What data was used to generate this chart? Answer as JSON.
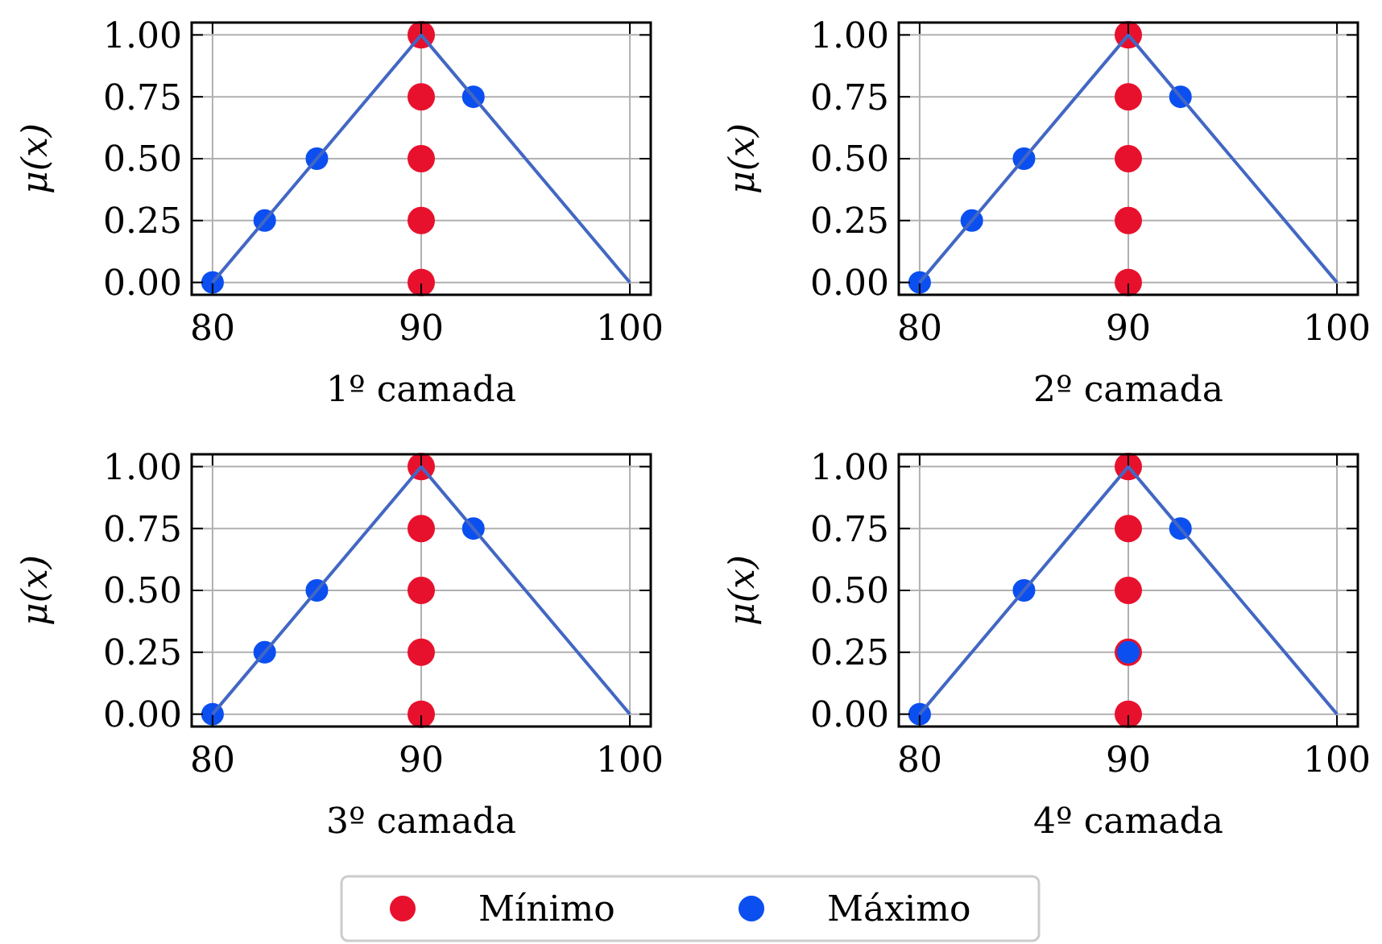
{
  "chart_data": [
    {
      "type": "scatter",
      "xlabel": "1º camada",
      "ylabel": "μ(x)",
      "xlim": [
        79,
        101
      ],
      "ylim": [
        -0.05,
        1.05
      ],
      "xticks": [
        80,
        90,
        100
      ],
      "yticks": [
        {
          "value": 0,
          "label": "0.00"
        },
        {
          "value": 0.25,
          "label": "0.25"
        },
        {
          "value": 0.5,
          "label": "0.50"
        },
        {
          "value": 0.75,
          "label": "0.75"
        },
        {
          "value": 1,
          "label": "1.00"
        }
      ],
      "grid": true,
      "legend": "bottom",
      "series": [
        {
          "name": "Mínimo",
          "color": "#e8112d",
          "marker": "circle",
          "x": [
            90,
            90,
            90,
            90,
            90
          ],
          "values": [
            0,
            0.25,
            0.5,
            0.75,
            1
          ]
        },
        {
          "name": "Máximo",
          "color": "#0b4ff0",
          "marker": "circle",
          "x": [
            80,
            82.5,
            85,
            92.5
          ],
          "values": [
            0,
            0.25,
            0.5,
            0.75
          ]
        },
        {
          "type": "line",
          "color": "#4267c4",
          "x": [
            80,
            90,
            100
          ],
          "values": [
            0,
            1,
            0
          ]
        }
      ]
    },
    {
      "type": "scatter",
      "xlabel": "2º camada",
      "ylabel": "μ(x)",
      "xlim": [
        79,
        101
      ],
      "ylim": [
        -0.05,
        1.05
      ],
      "xticks": [
        80,
        90,
        100
      ],
      "yticks": [
        {
          "value": 0,
          "label": "0.00"
        },
        {
          "value": 0.25,
          "label": "0.25"
        },
        {
          "value": 0.5,
          "label": "0.50"
        },
        {
          "value": 0.75,
          "label": "0.75"
        },
        {
          "value": 1,
          "label": "1.00"
        }
      ],
      "grid": true,
      "series": [
        {
          "color": "#e8112d",
          "marker": "circle",
          "x": [
            90,
            90,
            90,
            90,
            90
          ],
          "values": [
            0,
            0.25,
            0.5,
            0.75,
            1
          ]
        },
        {
          "color": "#0b4ff0",
          "marker": "circle",
          "x": [
            80,
            82.5,
            85,
            92.5
          ],
          "values": [
            0,
            0.25,
            0.5,
            0.75
          ]
        },
        {
          "type": "line",
          "color": "#4267c4",
          "x": [
            80,
            90,
            100
          ],
          "values": [
            0,
            1,
            0
          ]
        }
      ]
    },
    {
      "type": "scatter",
      "xlabel": "3º camada",
      "ylabel": "μ(x)",
      "xlim": [
        79,
        101
      ],
      "ylim": [
        -0.05,
        1.05
      ],
      "xticks": [
        80,
        90,
        100
      ],
      "yticks": [
        {
          "value": 0,
          "label": "0.00"
        },
        {
          "value": 0.25,
          "label": "0.25"
        },
        {
          "value": 0.5,
          "label": "0.50"
        },
        {
          "value": 0.75,
          "label": "0.75"
        },
        {
          "value": 1,
          "label": "1.00"
        }
      ],
      "grid": true,
      "series": [
        {
          "color": "#e8112d",
          "marker": "circle",
          "x": [
            90,
            90,
            90,
            90,
            90
          ],
          "values": [
            0,
            0.25,
            0.5,
            0.75,
            1
          ]
        },
        {
          "color": "#0b4ff0",
          "marker": "circle",
          "x": [
            80,
            82.5,
            85,
            92.5
          ],
          "values": [
            0,
            0.25,
            0.5,
            0.75
          ]
        },
        {
          "type": "line",
          "color": "#4267c4",
          "x": [
            80,
            90,
            100
          ],
          "values": [
            0,
            1,
            0
          ]
        }
      ]
    },
    {
      "type": "scatter",
      "xlabel": "4º camada",
      "ylabel": "μ(x)",
      "xlim": [
        79,
        101
      ],
      "ylim": [
        -0.05,
        1.05
      ],
      "xticks": [
        80,
        90,
        100
      ],
      "yticks": [
        {
          "value": 0,
          "label": "0.00"
        },
        {
          "value": 0.25,
          "label": "0.25"
        },
        {
          "value": 0.5,
          "label": "0.50"
        },
        {
          "value": 0.75,
          "label": "0.75"
        },
        {
          "value": 1,
          "label": "1.00"
        }
      ],
      "grid": true,
      "series": [
        {
          "color": "#e8112d",
          "marker": "circle",
          "x": [
            90,
            90,
            90,
            90,
            90
          ],
          "values": [
            0,
            0.25,
            0.5,
            0.75,
            1
          ]
        },
        {
          "color": "#0b4ff0",
          "marker": "circle",
          "x": [
            80,
            85,
            90,
            92.5
          ],
          "values": [
            0,
            0.5,
            0.25,
            0.75
          ]
        },
        {
          "type": "line",
          "color": "#4267c4",
          "x": [
            80,
            90,
            100
          ],
          "values": [
            0,
            1,
            0
          ]
        }
      ]
    }
  ]
}
